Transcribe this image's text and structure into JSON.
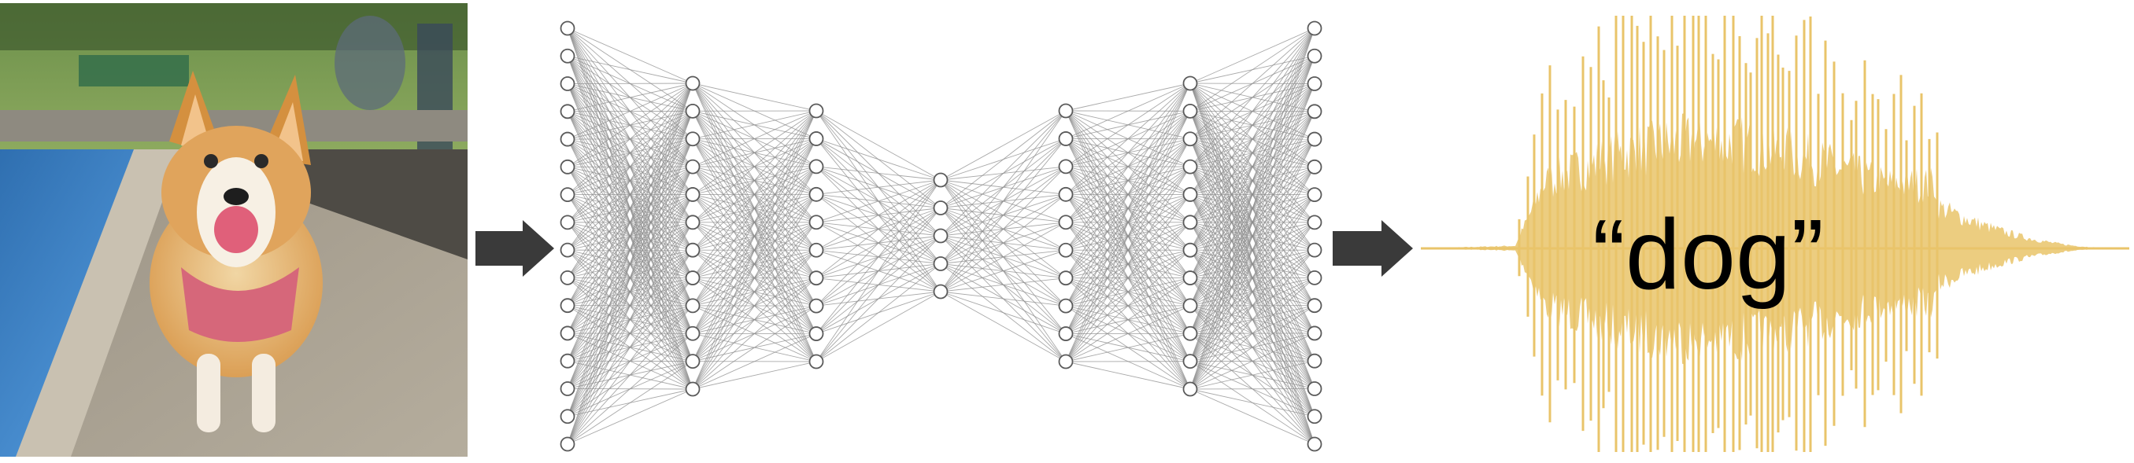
{
  "figure": {
    "input_image": {
      "subject": "corgi-dog-photo"
    },
    "network": {
      "layers": [
        16,
        12,
        10,
        5,
        10,
        12,
        16
      ]
    },
    "output": {
      "word": "“dog”",
      "waveform_color": "#e9c46a"
    },
    "colors": {
      "arrow": "#3a3a3a",
      "node_stroke": "#5a5a5a",
      "edge": "#8c8c8c"
    }
  }
}
